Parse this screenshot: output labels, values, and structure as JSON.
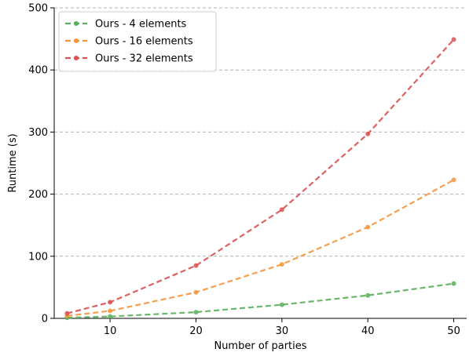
{
  "chart_data": {
    "type": "line",
    "xlabel": "Number of parties",
    "ylabel": "Runtime (s)",
    "xlim": [
      3.5,
      51.5
    ],
    "ylim": [
      0,
      500
    ],
    "xticks": [
      10,
      20,
      30,
      40,
      50
    ],
    "yticks": [
      0,
      100,
      200,
      300,
      400,
      500
    ],
    "grid": "horizontal dashed",
    "legend_position": "top-left",
    "x": [
      5,
      10,
      20,
      30,
      40,
      50
    ],
    "series": [
      {
        "name": "Ours - 4 elements",
        "color": "#5aaf5a",
        "values": [
          1,
          3,
          10,
          22,
          37,
          56
        ]
      },
      {
        "name": "Ours - 16 elements",
        "color": "#f5963c",
        "values": [
          4,
          12,
          42,
          87,
          147,
          223
        ]
      },
      {
        "name": "Ours - 32 elements",
        "color": "#dc5050",
        "values": [
          8,
          26,
          85,
          175,
          297,
          449
        ]
      }
    ]
  }
}
